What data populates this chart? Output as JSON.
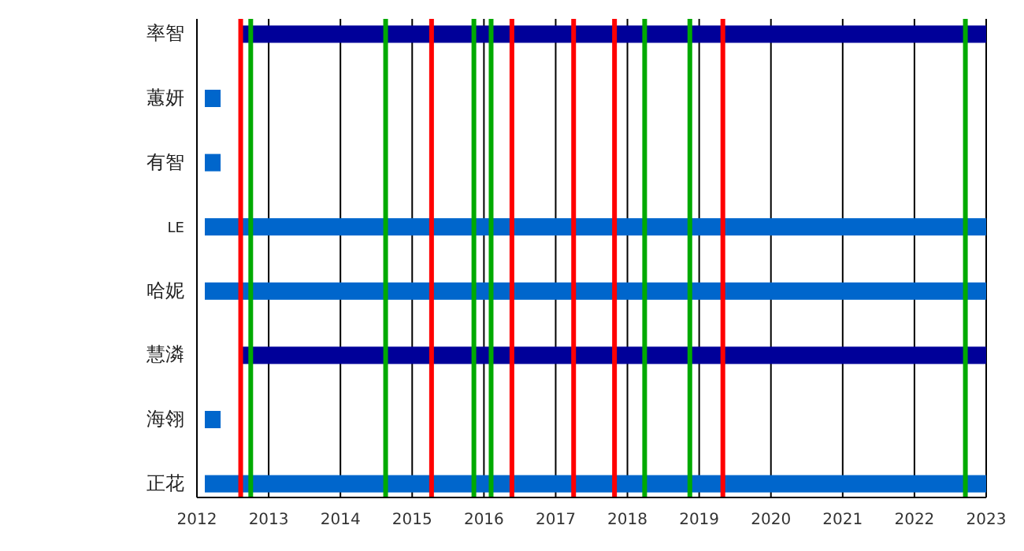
{
  "chart_data": {
    "type": "bar",
    "orientation": "horizontal",
    "categories": [
      "率智",
      "蕙妍",
      "有智",
      "LE",
      "哈妮",
      "慧潾",
      "海翎",
      "正花"
    ],
    "base": [
      2012.61,
      2012.11,
      2012.11,
      2012.11,
      2012.11,
      2012.61,
      2012.11,
      2012.11
    ],
    "values": [
      10.39,
      0.22,
      0.22,
      10.89,
      10.89,
      10.39,
      0.22,
      10.89
    ],
    "colors": [
      "#000099",
      "#0066cc",
      "#0066cc",
      "#0066cc",
      "#0066cc",
      "#000099",
      "#0066cc",
      "#0066cc"
    ],
    "xlim": [
      2012,
      2023
    ],
    "xticks": [
      2012,
      2013,
      2014,
      2015,
      2016,
      2017,
      2018,
      2019,
      2020,
      2021,
      2022,
      2023
    ],
    "grid": "x",
    "ref_lines": [
      {
        "axis": "x",
        "value": 2012.61,
        "color": "#ff0000"
      },
      {
        "axis": "x",
        "value": 2015.27,
        "color": "#ff0000"
      },
      {
        "axis": "x",
        "value": 2016.39,
        "color": "#ff0000"
      },
      {
        "axis": "x",
        "value": 2017.25,
        "color": "#ff0000"
      },
      {
        "axis": "x",
        "value": 2017.82,
        "color": "#ff0000"
      },
      {
        "axis": "x",
        "value": 2019.33,
        "color": "#ff0000"
      },
      {
        "axis": "x",
        "value": 2012.75,
        "color": "#00aa00"
      },
      {
        "axis": "x",
        "value": 2014.63,
        "color": "#00aa00"
      },
      {
        "axis": "x",
        "value": 2015.86,
        "color": "#00aa00"
      },
      {
        "axis": "x",
        "value": 2016.1,
        "color": "#00aa00"
      },
      {
        "axis": "x",
        "value": 2018.24,
        "color": "#00aa00"
      },
      {
        "axis": "x",
        "value": 2018.87,
        "color": "#00aa00"
      },
      {
        "axis": "x",
        "value": 2022.71,
        "color": "#00aa00"
      }
    ]
  }
}
